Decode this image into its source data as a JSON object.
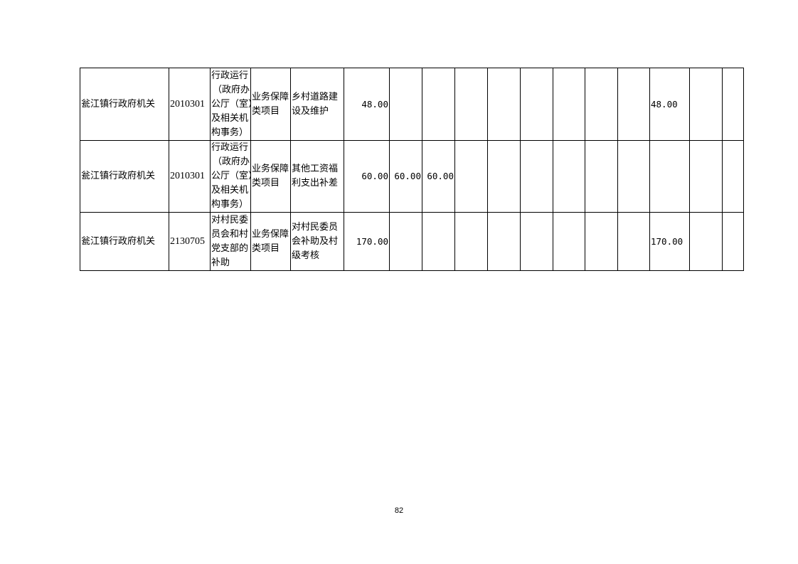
{
  "table": {
    "rows": [
      {
        "cells": [
          [
            "瓮江镇行政府机关"
          ],
          [
            "2010301"
          ],
          [
            "行政运行",
            "（政府办",
            "公厅（室）",
            "及相关机",
            "构事务）"
          ],
          [
            "业务保障",
            "类项目"
          ],
          [
            "乡村道路建",
            "设及维护"
          ],
          [
            "48.00"
          ],
          [
            ""
          ],
          [
            ""
          ],
          [
            ""
          ],
          [
            ""
          ],
          [
            ""
          ],
          [
            ""
          ],
          [
            ""
          ],
          [
            ""
          ],
          [
            "48.00"
          ],
          [
            ""
          ],
          [
            ""
          ]
        ]
      },
      {
        "cells": [
          [
            "瓮江镇行政府机关"
          ],
          [
            "2010301"
          ],
          [
            "行政运行",
            "（政府办",
            "公厅（室）",
            "及相关机",
            "构事务）"
          ],
          [
            "业务保障",
            "类项目"
          ],
          [
            "其他工资福",
            "利支出补差"
          ],
          [
            "60.00"
          ],
          [
            "60.00"
          ],
          [
            "60.00"
          ],
          [
            ""
          ],
          [
            ""
          ],
          [
            ""
          ],
          [
            ""
          ],
          [
            ""
          ],
          [
            ""
          ],
          [
            ""
          ],
          [
            ""
          ],
          [
            ""
          ]
        ]
      },
      {
        "cells": [
          [
            "瓮江镇行政府机关"
          ],
          [
            "2130705"
          ],
          [
            "对村民委",
            "员会和村",
            "党支部的",
            "补助"
          ],
          [
            "业务保障",
            "类项目"
          ],
          [
            "对村民委员",
            "会补助及村",
            "级考核"
          ],
          [
            "170.00"
          ],
          [
            ""
          ],
          [
            ""
          ],
          [
            ""
          ],
          [
            ""
          ],
          [
            ""
          ],
          [
            ""
          ],
          [
            ""
          ],
          [
            ""
          ],
          [
            "170.00"
          ],
          [
            ""
          ],
          [
            ""
          ]
        ]
      }
    ]
  },
  "footer": {
    "page_number": "82"
  }
}
